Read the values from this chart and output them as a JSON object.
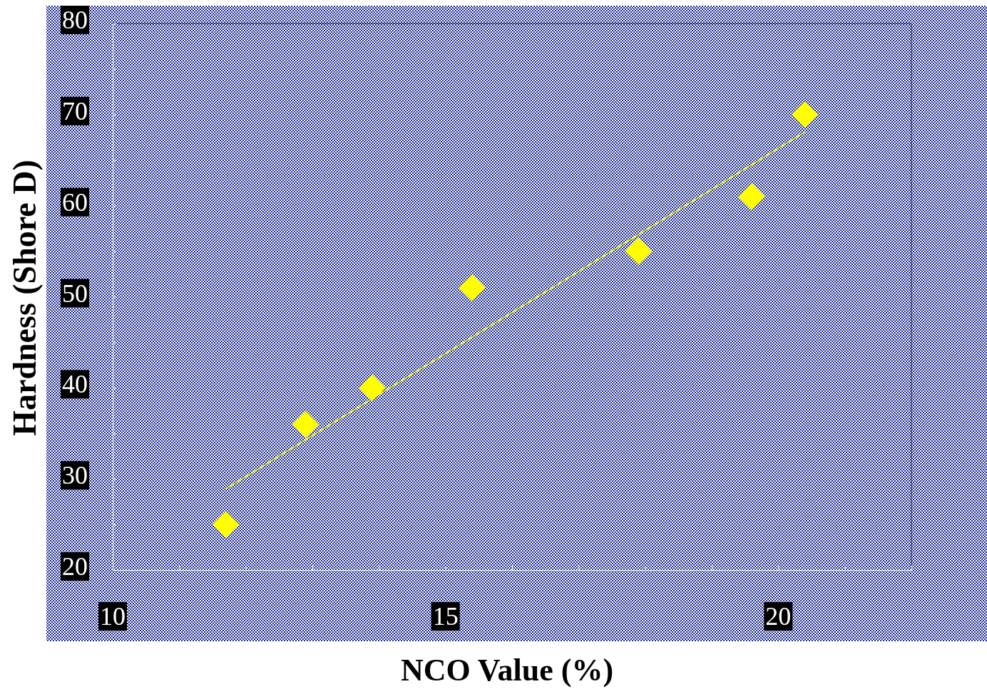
{
  "chart_data": {
    "type": "scatter",
    "xlabel": "NCO Value (%)",
    "ylabel": "Hardness (Shore D)",
    "xlim": [
      10,
      22
    ],
    "ylim": [
      20,
      80
    ],
    "xticks": [
      10,
      {
        "value": 11,
        "label": null
      },
      {
        "value": 12,
        "label": null
      },
      {
        "value": 13,
        "label": null
      },
      {
        "value": 14,
        "label": null
      },
      15,
      {
        "value": 16,
        "label": null
      },
      {
        "value": 17,
        "label": null
      },
      {
        "value": 18,
        "label": null
      },
      {
        "value": 19,
        "label": null
      },
      20,
      {
        "value": 21,
        "label": null
      },
      {
        "value": 22,
        "label": null
      }
    ],
    "yticks": [
      20,
      {
        "value": 25,
        "label": null
      },
      30,
      {
        "value": 35,
        "label": null
      },
      40,
      {
        "value": 45,
        "label": null
      },
      50,
      {
        "value": 55,
        "label": null
      },
      60,
      {
        "value": 65,
        "label": null
      },
      70,
      {
        "value": 75,
        "label": null
      },
      80
    ],
    "grid": false,
    "series": [
      {
        "color": "#ffff00",
        "marker": "diamond",
        "x": [
          11.7,
          12.9,
          13.9,
          15.4,
          17.9,
          19.6,
          20.4
        ],
        "values": [
          25,
          36,
          40,
          51,
          55,
          61,
          70
        ]
      },
      {
        "type": "line",
        "color": "#ffff00",
        "marker": "none",
        "line_style": "solid",
        "x": [
          11.7,
          20.4
        ],
        "values": [
          28.9,
          68.1
        ]
      }
    ]
  }
}
